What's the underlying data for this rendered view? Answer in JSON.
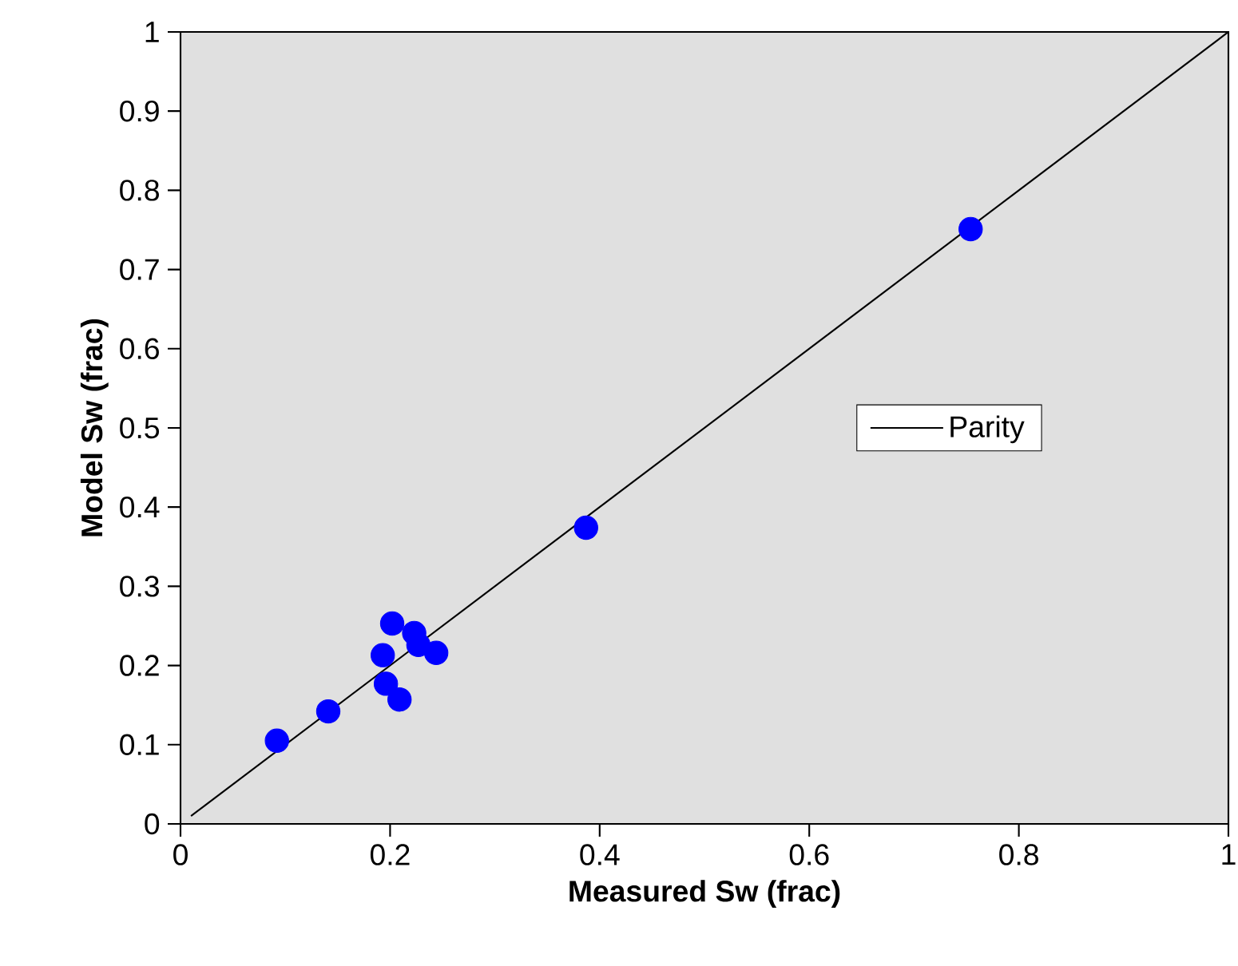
{
  "chart_data": {
    "type": "scatter",
    "xlabel": "Measured Sw (frac)",
    "ylabel": "Model Sw (frac)",
    "xlim": [
      0,
      1
    ],
    "ylim": [
      0,
      1
    ],
    "xticks": [
      0,
      0.2,
      0.4,
      0.6,
      0.8,
      1
    ],
    "yticks": [
      0,
      0.1,
      0.2,
      0.3,
      0.4,
      0.5,
      0.6,
      0.7,
      0.8,
      0.9,
      1
    ],
    "legend": "right",
    "series": [
      {
        "color": "#0000ff",
        "marker": "circle",
        "x": [
          0.092,
          0.141,
          0.202,
          0.223,
          0.227,
          0.244,
          0.193,
          0.196,
          0.209,
          0.387,
          0.754
        ],
        "values": [
          0.105,
          0.142,
          0.253,
          0.241,
          0.226,
          0.216,
          0.213,
          0.177,
          0.157,
          0.374,
          0.751
        ]
      },
      {
        "type": "line",
        "name": "Parity",
        "color": "#000000",
        "marker": "none",
        "line_style": "solid",
        "x": [
          0.01,
          1
        ],
        "values": [
          0.01,
          1
        ]
      }
    ]
  }
}
